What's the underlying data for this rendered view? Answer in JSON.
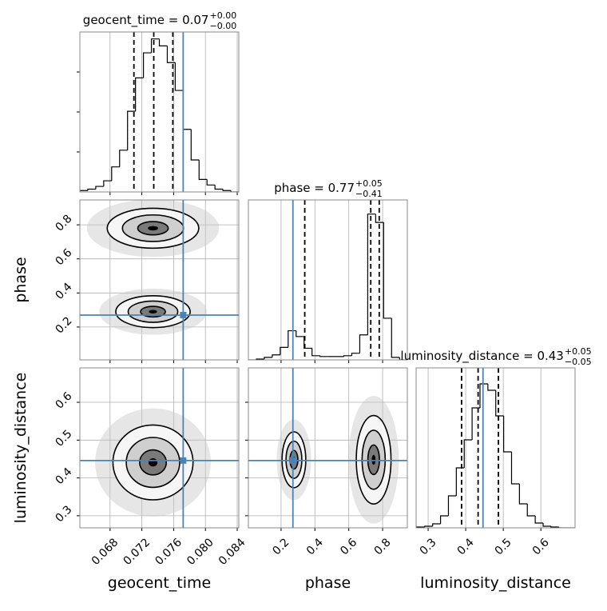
{
  "chart_data": {
    "type": "corner",
    "parameters": [
      {
        "name": "geocent_time",
        "title": "geocent_time = 0.07",
        "title_plus": "+0.00",
        "title_minus": "−0.00",
        "lim": [
          0.0642,
          0.0842
        ],
        "ticks": [
          0.068,
          0.072,
          0.076,
          {
            "value": 0.08,
            "label": "0.080"
          },
          0.084
        ],
        "quantiles": [
          0.071,
          0.0735,
          0.0759
        ],
        "bins": [
          0.0642,
          0.0652,
          0.0662,
          0.0672,
          0.0682,
          0.0692,
          0.0702,
          0.0712,
          0.0722,
          0.0732,
          0.0742,
          0.0752,
          0.0762,
          0.0772,
          0.0782,
          0.0792,
          0.0802,
          0.0812,
          0.0822,
          0.0832,
          0.0842
        ],
        "counts": [
          1,
          2,
          4,
          8,
          18,
          30,
          58,
          82,
          100,
          110,
          105,
          93,
          73,
          45,
          23,
          9,
          5,
          2,
          1,
          0
        ],
        "hist_ylim": [
          0,
          115
        ]
      },
      {
        "name": "phase",
        "title": "phase = 0.77",
        "title_plus": "+0.05",
        "title_minus": "−0.41",
        "lim": [
          0.007,
          0.946
        ],
        "ticks": [
          0.2,
          0.4,
          0.6,
          0.8
        ],
        "quantiles": [
          0.34,
          0.73,
          0.78
        ],
        "bins": [
          0.007,
          0.054,
          0.101,
          0.148,
          0.195,
          0.242,
          0.289,
          0.336,
          0.383,
          0.43,
          0.477,
          0.524,
          0.571,
          0.618,
          0.665,
          0.712,
          0.759,
          0.806,
          0.853,
          0.9,
          0.946
        ],
        "counts": [
          0,
          1,
          3,
          6,
          15,
          35,
          28,
          14,
          5,
          4,
          4,
          4,
          5,
          8,
          30,
          175,
          165,
          50,
          3,
          0
        ],
        "hist_ylim": [
          0,
          192
        ],
        "densities": [
          [
            {
              "x": 0.0734,
              "y": 0.78,
              "sx": 0.0032,
              "sy": 0.065
            },
            {
              "x": 0.0734,
              "y": 0.29,
              "sx": 0.0026,
              "sy": 0.052
            }
          ]
        ]
      },
      {
        "name": "luminosity_distance",
        "title": "luminosity_distance = 0.43",
        "title_plus": "+0.05",
        "title_minus": "−0.05",
        "lim": [
          0.268,
          0.691
        ],
        "ticks": [
          0.3,
          0.4,
          0.5,
          0.6
        ],
        "quantiles": [
          0.389,
          0.433,
          0.487
        ],
        "bins": [
          0.27,
          0.291,
          0.312,
          0.333,
          0.354,
          0.375,
          0.396,
          0.417,
          0.438,
          0.459,
          0.48,
          0.501,
          0.522,
          0.543,
          0.564,
          0.585,
          0.606,
          0.627,
          0.648,
          0.669,
          0.69
        ],
        "counts": [
          1,
          2,
          5,
          15,
          40,
          75,
          110,
          150,
          180,
          172,
          140,
          95,
          55,
          30,
          15,
          6,
          2,
          1,
          0,
          0
        ],
        "hist_ylim": [
          0,
          200
        ],
        "densities": [
          [
            {
              "x": 0.0734,
              "y": 0.441,
              "sx": 0.0028,
              "sy": 0.055
            }
          ],
          [
            {
              "x": 0.276,
              "y": 0.448,
              "sx": 0.039,
              "sy": 0.041
            },
            {
              "x": 0.747,
              "y": 0.448,
              "sx": 0.057,
              "sy": 0.065
            }
          ]
        ]
      }
    ],
    "truths": [
      0.0772,
      0.27,
      0.446
    ],
    "truth_color": "#4a83b8",
    "grid": true
  }
}
